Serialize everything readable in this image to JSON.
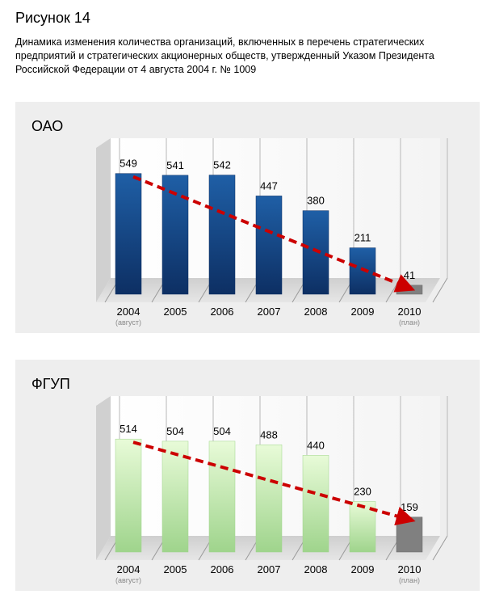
{
  "figure": {
    "title": "Рисунок 14",
    "caption": "Динамика изменения количества организаций, включенных в перечень стратегических предприятий и стратегических акционерных обществ, утвержденный Указом Президента Российской Федерации от 4 августа 2004 г. № 1009"
  },
  "colors": {
    "panel_bg": "#eeeeee",
    "oao_bar_top": "#1f5fa6",
    "oao_bar_bottom": "#0d2f63",
    "fgup_bar_top": "#e8fbd8",
    "fgup_bar_bottom": "#9fd48c",
    "plan_bar": "#808080",
    "trend_arrow": "#cc0000"
  },
  "chart_data": [
    {
      "type": "bar",
      "title": "ОАО",
      "categories": [
        "2004",
        "2005",
        "2006",
        "2007",
        "2008",
        "2009",
        "2010"
      ],
      "category_sublabels": [
        "(август)",
        "",
        "",
        "",
        "",
        "",
        "(план)"
      ],
      "values": [
        549,
        541,
        542,
        447,
        380,
        211,
        41
      ],
      "plan_index": 6,
      "trend_arrow": {
        "from": "2004",
        "to": "2010"
      },
      "grid": true,
      "legend": "none"
    },
    {
      "type": "bar",
      "title": "ФГУП",
      "categories": [
        "2004",
        "2005",
        "2006",
        "2007",
        "2008",
        "2009",
        "2010"
      ],
      "category_sublabels": [
        "(август)",
        "",
        "",
        "",
        "",
        "",
        "(план)"
      ],
      "values": [
        514,
        504,
        504,
        488,
        440,
        230,
        159
      ],
      "plan_index": 6,
      "trend_arrow": {
        "from": "2004",
        "to": "2010"
      },
      "grid": true,
      "legend": "none"
    }
  ]
}
